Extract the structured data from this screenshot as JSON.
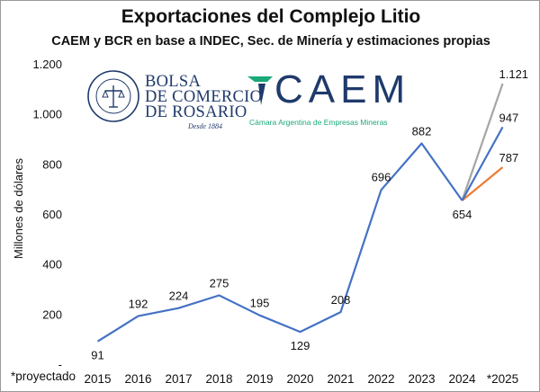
{
  "chart_data": {
    "type": "line",
    "title": "Exportaciones del Complejo Litio",
    "subtitle": "CAEM y BCR en base a INDEC, Sec. de Minería y estimaciones propias",
    "ylabel": "Millones de dólares",
    "xlabel": "",
    "ylim": [
      0,
      1200
    ],
    "yticks": [
      0,
      200,
      400,
      600,
      800,
      1000,
      1200
    ],
    "ytick_labels": [
      "-",
      "200",
      "400",
      "600",
      "800",
      "1.000",
      "1.200"
    ],
    "categories": [
      "2015",
      "2016",
      "2017",
      "2018",
      "2019",
      "2020",
      "2021",
      "2022",
      "2023",
      "2024",
      "*2025"
    ],
    "series": [
      {
        "color": "#4472c4",
        "values": [
          91,
          192,
          224,
          275,
          195,
          129,
          208,
          696,
          882,
          654,
          null
        ],
        "labels": [
          "91",
          "192",
          "224",
          "275",
          "195",
          "129",
          "208",
          "696",
          "882",
          "654",
          null
        ]
      },
      {
        "color": "#a5a5a5",
        "values": [
          null,
          null,
          null,
          null,
          null,
          null,
          null,
          null,
          null,
          654,
          1121
        ],
        "labels": [
          null,
          null,
          null,
          null,
          null,
          null,
          null,
          null,
          null,
          null,
          "1.121"
        ]
      },
      {
        "color": "#4472c4",
        "values": [
          null,
          null,
          null,
          null,
          null,
          null,
          null,
          null,
          null,
          654,
          947
        ],
        "labels": [
          null,
          null,
          null,
          null,
          null,
          null,
          null,
          null,
          null,
          null,
          "947"
        ]
      },
      {
        "color": "#ed7d31",
        "values": [
          null,
          null,
          null,
          null,
          null,
          null,
          null,
          null,
          null,
          654,
          787
        ],
        "labels": [
          null,
          null,
          null,
          null,
          null,
          null,
          null,
          null,
          null,
          null,
          "787"
        ]
      }
    ],
    "grid": false,
    "legend": "none"
  },
  "note": "*proyectado",
  "logos": {
    "bcr_name_lines": [
      "BOLSA",
      "DE COMERCIO",
      "DE ROSARIO"
    ],
    "bcr_since": "Desde 1884",
    "bcr_seal_text": "BOLSA DE COMERCIO DE ROSARIO",
    "caem_name": "CAEM",
    "caem_full": "Cámara Argentina de Empresas Mineras"
  }
}
